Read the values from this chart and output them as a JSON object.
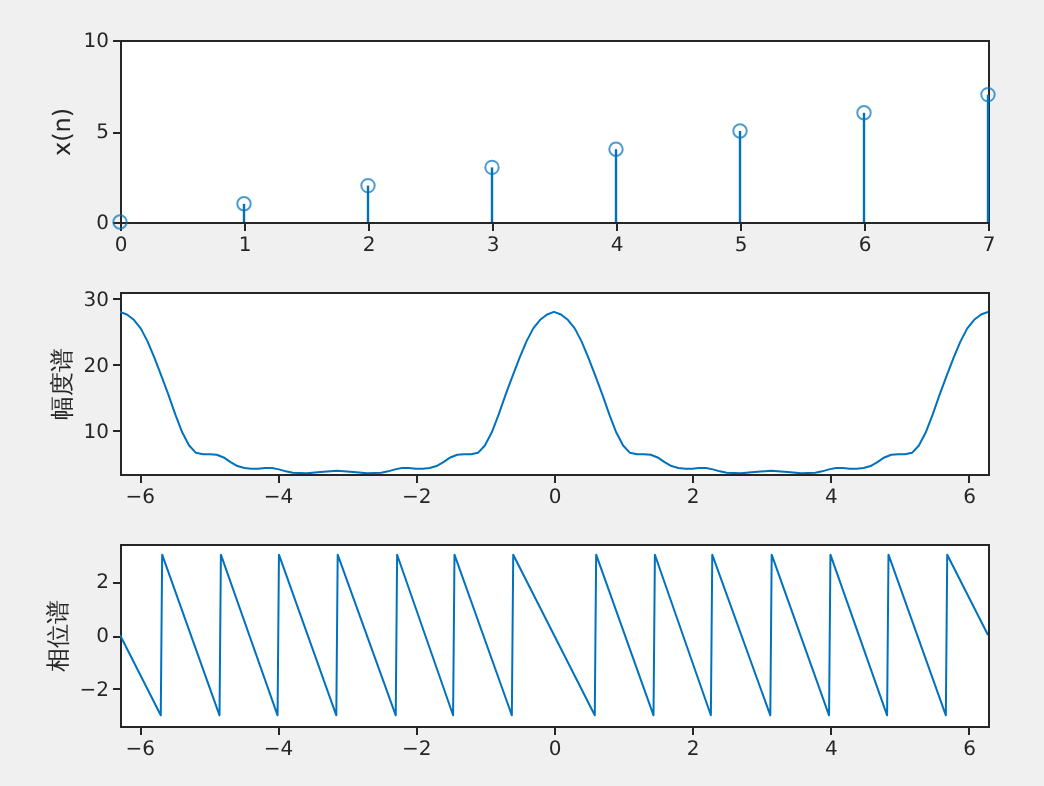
{
  "chart_data": [
    {
      "type": "lollipop",
      "ylabel": "x(n)",
      "x": [
        0,
        1,
        2,
        3,
        4,
        5,
        6,
        7
      ],
      "values": [
        0,
        1,
        2,
        3,
        4,
        5,
        6,
        7
      ],
      "color": "#0072bd",
      "marker": "circle",
      "xlim": [
        0,
        7
      ],
      "ylim": [
        0,
        10
      ],
      "xticks": [
        0,
        1,
        2,
        3,
        4,
        5,
        6,
        7
      ],
      "yticks": [
        0,
        5,
        10
      ]
    },
    {
      "type": "line",
      "ylabel": "幅度谱",
      "color": "#0072bd",
      "xlim": [
        -6.28,
        6.28
      ],
      "ylim": [
        3.5,
        31
      ],
      "xticks": [
        -6,
        -4,
        -2,
        0,
        2,
        4,
        6
      ],
      "yticks": [
        10,
        20,
        30
      ],
      "x": [
        -6.28,
        -6.18,
        -6.08,
        -5.98,
        -5.88,
        -5.78,
        -5.68,
        -5.58,
        -5.48,
        -5.38,
        -5.28,
        -5.18,
        -5.08,
        -4.98,
        -4.88,
        -4.78,
        -4.68,
        -4.58,
        -4.48,
        -4.38,
        -4.28,
        -4.18,
        -4.08,
        -3.98,
        -3.88,
        -3.78,
        -3.58,
        -3.38,
        -3.14,
        -2.9,
        -2.7,
        -2.5,
        -2.4,
        -2.3,
        -2.2,
        -2.1,
        -2.0,
        -1.9,
        -1.8,
        -1.7,
        -1.6,
        -1.5,
        -1.4,
        -1.3,
        -1.2,
        -1.1,
        -1.0,
        -0.9,
        -0.8,
        -0.7,
        -0.6,
        -0.5,
        -0.4,
        -0.3,
        -0.2,
        -0.1,
        0,
        0.1,
        0.2,
        0.3,
        0.4,
        0.5,
        0.6,
        0.7,
        0.8,
        0.9,
        1.0,
        1.1,
        1.2,
        1.3,
        1.4,
        1.5,
        1.6,
        1.7,
        1.8,
        1.9,
        2.0,
        2.1,
        2.2,
        2.3,
        2.4,
        2.5,
        2.7,
        2.9,
        3.14,
        3.38,
        3.58,
        3.78,
        3.88,
        3.98,
        4.08,
        4.18,
        4.28,
        4.38,
        4.48,
        4.58,
        4.68,
        4.78,
        4.88,
        4.98,
        5.08,
        5.18,
        5.28,
        5.38,
        5.48,
        5.58,
        5.68,
        5.78,
        5.88,
        5.98,
        6.08,
        6.18,
        6.28
      ],
      "values": [
        28,
        27.6,
        26.8,
        25.5,
        23.5,
        21,
        18.3,
        15.5,
        12.5,
        9.8,
        7.8,
        6.7,
        6.5,
        6.5,
        6.4,
        6.0,
        5.3,
        4.7,
        4.4,
        4.3,
        4.3,
        4.4,
        4.4,
        4.2,
        3.9,
        3.7,
        3.6,
        3.8,
        4.0,
        3.8,
        3.6,
        3.7,
        3.9,
        4.2,
        4.4,
        4.4,
        4.3,
        4.3,
        4.4,
        4.7,
        5.3,
        6.0,
        6.4,
        6.5,
        6.5,
        6.7,
        7.8,
        9.8,
        12.5,
        15.5,
        18.3,
        21,
        23.5,
        25.5,
        26.8,
        27.6,
        28,
        27.6,
        26.8,
        25.5,
        23.5,
        21,
        18.3,
        15.5,
        12.5,
        9.8,
        7.8,
        6.7,
        6.5,
        6.5,
        6.4,
        6.0,
        5.3,
        4.7,
        4.4,
        4.3,
        4.3,
        4.4,
        4.4,
        4.2,
        3.9,
        3.7,
        3.6,
        3.8,
        4.0,
        3.8,
        3.6,
        3.7,
        3.9,
        4.2,
        4.4,
        4.4,
        4.3,
        4.3,
        4.4,
        4.7,
        5.3,
        6.0,
        6.4,
        6.5,
        6.5,
        6.7,
        7.8,
        9.8,
        12.5,
        15.5,
        18.3,
        21,
        23.5,
        25.5,
        26.8,
        27.6,
        28
      ]
    },
    {
      "type": "line",
      "ylabel": "相位谱",
      "color": "#0072bd",
      "xlim": [
        -6.28,
        6.28
      ],
      "ylim": [
        -3.4,
        3.4
      ],
      "xticks": [
        -6,
        -4,
        -2,
        0,
        2,
        4,
        6
      ],
      "yticks": [
        -2,
        0,
        2
      ],
      "x": [
        -6.28,
        -5.69,
        -5.67,
        -4.84,
        -4.82,
        -4.0,
        -3.98,
        -3.15,
        -3.13,
        -2.29,
        -2.27,
        -1.46,
        -1.44,
        -0.61,
        -0.59,
        0,
        0.59,
        0.61,
        1.44,
        1.46,
        2.27,
        2.29,
        3.13,
        3.15,
        3.98,
        4.0,
        4.82,
        4.84,
        5.67,
        5.69,
        6.28
      ],
      "values": [
        0,
        -3.0,
        3.0,
        -3.0,
        3.0,
        -3.0,
        3.0,
        -3.0,
        3.0,
        -3.0,
        3.0,
        -3.0,
        3.0,
        -3.0,
        3.0,
        0,
        -3.0,
        3.0,
        -3.0,
        3.0,
        -3.0,
        3.0,
        -3.0,
        3.0,
        -3.0,
        3.0,
        -3.0,
        3.0,
        -3.0,
        3.0,
        0
      ]
    }
  ]
}
